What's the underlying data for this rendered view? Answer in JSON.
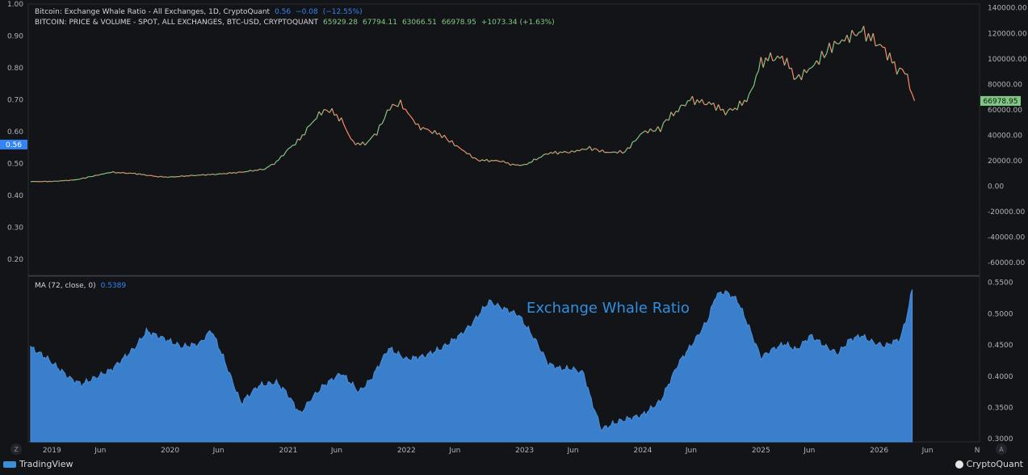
{
  "chart_data": {
    "type": "line",
    "title": "Bitcoin: Exchange Whale Ratio - All Exchanges, 1D, CryptoQuant",
    "legend": {
      "ratio": {
        "label": "Bitcoin: Exchange Whale Ratio - All Exchanges, 1D, CryptoQuant",
        "value": "0.56",
        "change": "−0.08",
        "change_pct": "(−12.55%)"
      },
      "price": {
        "label": "BITCOIN: PRICE & VOLUME - SPOT, ALL EXCHANGES, BTC-USD, CRYPTOQUANT",
        "open": "65929.28",
        "high": "67794.11",
        "low": "63066.51",
        "close": "66978.95",
        "change": "+1073.34 (+1.63%)"
      }
    },
    "left_axis": {
      "ticks": [
        "1.00",
        "0.90",
        "0.80",
        "0.70",
        "0.60",
        "0.50",
        "0.40",
        "0.30",
        "0.20"
      ],
      "ylim": [
        0.15,
        1.0
      ],
      "current_label": "0.56"
    },
    "right_axis": {
      "ticks": [
        "140000.00",
        "120000.00",
        "100000.00",
        "80000.00",
        "60000.00",
        "40000.00",
        "20000.00",
        "0.00",
        "-20000.00",
        "-40000.00",
        "-60000.00"
      ],
      "ylim": [
        -70000,
        143000
      ],
      "current_label": "66978.95"
    },
    "x_axis": {
      "ticks": [
        "2019",
        "Jun",
        "2020",
        "Jun",
        "2021",
        "Jun",
        "2022",
        "Jun",
        "2023",
        "Jun",
        "2024",
        "Jun",
        "2025",
        "Jun",
        "2026",
        "Jun",
        "N"
      ],
      "xlim": [
        2018.8,
        2026.85
      ]
    },
    "price_series": {
      "name": "BTC-USD price",
      "x": [
        2018.82,
        2019.0,
        2019.2,
        2019.35,
        2019.5,
        2019.7,
        2019.9,
        2020.0,
        2020.2,
        2020.4,
        2020.6,
        2020.8,
        2020.9,
        2021.0,
        2021.1,
        2021.2,
        2021.28,
        2021.35,
        2021.45,
        2021.55,
        2021.65,
        2021.75,
        2021.86,
        2021.95,
        2022.1,
        2022.3,
        2022.45,
        2022.6,
        2022.8,
        2022.9,
        2023.0,
        2023.2,
        2023.4,
        2023.55,
        2023.7,
        2023.85,
        2024.0,
        2024.15,
        2024.2,
        2024.4,
        2024.6,
        2024.7,
        2024.8,
        2024.9,
        2025.0,
        2025.08,
        2025.2,
        2025.3,
        2025.45,
        2025.6,
        2025.75,
        2025.85,
        2025.95,
        2026.05,
        2026.15,
        2026.22,
        2026.3
      ],
      "values": [
        3700,
        3800,
        5000,
        8000,
        11000,
        10000,
        7500,
        7200,
        8500,
        9500,
        11000,
        13500,
        19000,
        29000,
        37000,
        50000,
        58000,
        60000,
        52000,
        34000,
        33000,
        42000,
        62000,
        65000,
        47000,
        40000,
        30000,
        20500,
        19800,
        16800,
        16600,
        26000,
        27000,
        30000,
        26500,
        27000,
        42500,
        45000,
        52000,
        68000,
        64000,
        58000,
        62000,
        70000,
        97000,
        101000,
        100000,
        84000,
        95000,
        110000,
        117000,
        122000,
        115000,
        107000,
        92000,
        90000,
        66979
      ]
    },
    "ma_series": {
      "name": "MA (72, close, 0)",
      "last_value": "0.5389",
      "ticks": [
        "0.5500",
        "0.5000",
        "0.4500",
        "0.4000",
        "0.3500",
        "0.3000"
      ],
      "ylim": [
        0.295,
        0.56
      ],
      "x": [
        2018.82,
        2018.95,
        2019.15,
        2019.25,
        2019.5,
        2019.7,
        2019.8,
        2019.95,
        2020.1,
        2020.25,
        2020.35,
        2020.45,
        2020.6,
        2020.75,
        2020.9,
        2020.98,
        2021.1,
        2021.2,
        2021.3,
        2021.45,
        2021.6,
        2021.7,
        2021.85,
        2022.0,
        2022.15,
        2022.3,
        2022.45,
        2022.55,
        2022.7,
        2022.8,
        2022.95,
        2023.1,
        2023.2,
        2023.3,
        2023.4,
        2023.5,
        2023.55,
        2023.65,
        2023.8,
        2024.0,
        2024.15,
        2024.3,
        2024.45,
        2024.55,
        2024.62,
        2024.7,
        2024.8,
        2024.9,
        2025.0,
        2025.1,
        2025.2,
        2025.3,
        2025.42,
        2025.55,
        2025.65,
        2025.75,
        2025.85,
        2025.95,
        2026.05,
        2026.12,
        2026.18,
        2026.24,
        2026.28
      ],
      "values": [
        0.446,
        0.43,
        0.397,
        0.387,
        0.41,
        0.445,
        0.472,
        0.46,
        0.447,
        0.452,
        0.474,
        0.43,
        0.357,
        0.385,
        0.39,
        0.375,
        0.34,
        0.365,
        0.385,
        0.405,
        0.375,
        0.395,
        0.445,
        0.427,
        0.432,
        0.445,
        0.465,
        0.483,
        0.52,
        0.51,
        0.498,
        0.455,
        0.42,
        0.412,
        0.412,
        0.405,
        0.37,
        0.315,
        0.328,
        0.338,
        0.36,
        0.42,
        0.46,
        0.49,
        0.53,
        0.535,
        0.522,
        0.478,
        0.43,
        0.443,
        0.452,
        0.442,
        0.465,
        0.447,
        0.436,
        0.458,
        0.465,
        0.454,
        0.448,
        0.455,
        0.46,
        0.5,
        0.5389
      ]
    },
    "annotation": "Exchange Whale Ratio",
    "scale_buttons": {
      "log": "Z",
      "auto": "A"
    }
  },
  "footer": {
    "left_brand": "TradingView",
    "right_brand": "CryptoQuant"
  },
  "colors": {
    "background": "#131418",
    "area_fill": "#3a7fcc",
    "area_top": "#4a8fdc",
    "annotation": "#2f8fe0",
    "price_up": "#81c784",
    "price_down": "#ff8a65",
    "axis_highlight": "#3384f4",
    "price_label_bg": "#81c784"
  }
}
